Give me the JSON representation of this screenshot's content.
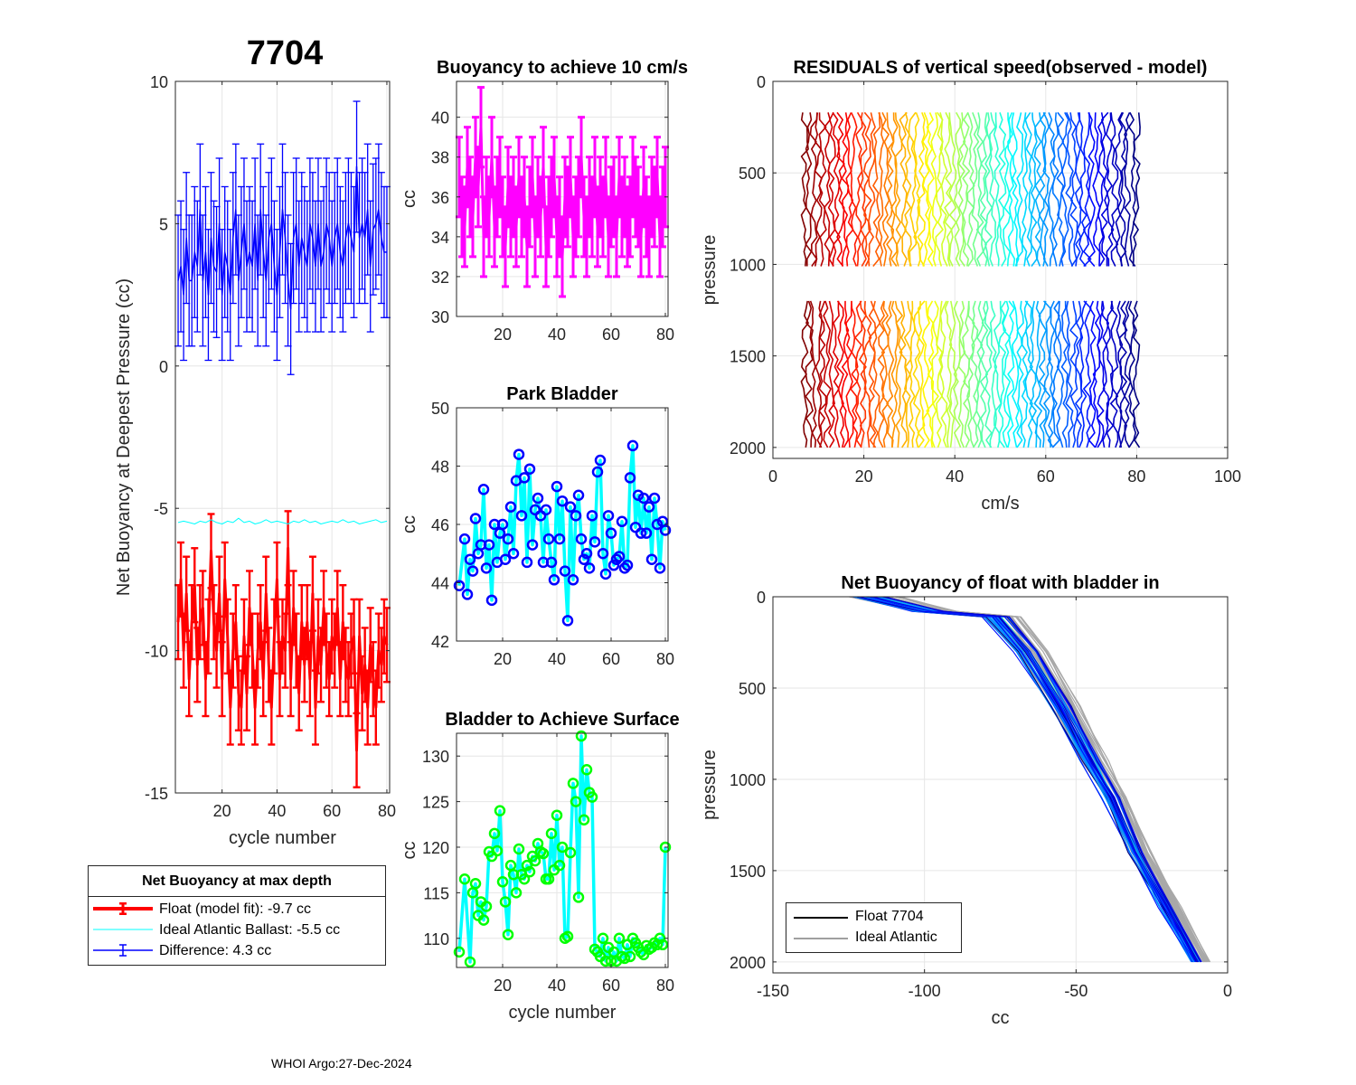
{
  "figure": {
    "main_title": "7704",
    "footer": "WHOI Argo:27-Dec-2024",
    "legend1": {
      "title": "Net Buoyancy at max depth",
      "entries": [
        {
          "label": "Float (model fit):  -9.7 cc",
          "color": "#ff0000"
        },
        {
          "label": "Ideal Atlantic Ballast:  -5.5 cc",
          "color": "#00ffff"
        },
        {
          "label": "Difference:   4.3 cc",
          "color": "#0000ff"
        }
      ]
    },
    "legend2": {
      "entries": [
        {
          "label": "Float 7704",
          "color": "#000000"
        },
        {
          "label": "Ideal Atlantic",
          "color": "#a0a0a0"
        }
      ]
    }
  },
  "chart_data": [
    {
      "id": "net_buoyancy",
      "type": "line",
      "title": "",
      "xlabel": "cycle number",
      "ylabel": "Net Buoyancy at Deepest Pressure (cc)",
      "xlim": [
        3,
        81
      ],
      "ylim": [
        -15,
        10
      ],
      "xticks": [
        20,
        40,
        60,
        80
      ],
      "yticks": [
        -15,
        -10,
        -5,
        0,
        5,
        10
      ],
      "grid": true,
      "series": [
        {
          "name": "Float (model fit)",
          "color": "#ff0000",
          "err": 1.3,
          "x": [
            4,
            5,
            6,
            7,
            8,
            9,
            10,
            11,
            12,
            13,
            14,
            15,
            16,
            17,
            18,
            19,
            20,
            21,
            22,
            23,
            24,
            25,
            26,
            27,
            28,
            29,
            30,
            31,
            32,
            33,
            34,
            35,
            36,
            37,
            38,
            39,
            40,
            41,
            42,
            43,
            44,
            45,
            46,
            47,
            48,
            49,
            50,
            51,
            52,
            53,
            54,
            55,
            56,
            57,
            58,
            59,
            60,
            61,
            62,
            63,
            64,
            65,
            66,
            67,
            68,
            69,
            70,
            71,
            72,
            73,
            74,
            75,
            76,
            77,
            78,
            79,
            80
          ],
          "y": [
            -9,
            -7.5,
            -10,
            -8,
            -11,
            -9,
            -7.7,
            -10.5,
            -9,
            -8.5,
            -11,
            -9.5,
            -6.5,
            -9,
            -10,
            -8,
            -11,
            -7.5,
            -9.5,
            -12,
            -10,
            -9,
            -11.5,
            -12,
            -9.5,
            -11.5,
            -8.5,
            -10,
            -12,
            -10,
            -9,
            -11,
            -8,
            -10.5,
            -12,
            -9.5,
            -7.5,
            -11,
            -9.5,
            -10,
            -6.4,
            -11,
            -8.5,
            -10,
            -11.5,
            -9,
            -10.5,
            -9,
            -11,
            -8,
            -12,
            -9.5,
            -10.5,
            -8.5,
            -10,
            -11,
            -9.5,
            -10,
            -8.5,
            -11,
            -9,
            -10.5,
            -11,
            -10,
            -9.5,
            -13.5,
            -9.5,
            -11.5,
            -10.5,
            -12,
            -9.8,
            -11,
            -12,
            -10,
            -10.5,
            -9.5,
            -9.8
          ]
        },
        {
          "name": "Ideal Atlantic Ballast",
          "color": "#00ffff",
          "x": [
            4,
            6,
            8,
            10,
            12,
            14,
            16,
            18,
            20,
            22,
            24,
            26,
            28,
            30,
            32,
            34,
            36,
            38,
            40,
            42,
            44,
            46,
            48,
            50,
            52,
            54,
            56,
            58,
            60,
            62,
            64,
            66,
            68,
            70,
            72,
            74,
            76,
            78,
            80
          ],
          "y": [
            -5.5,
            -5.45,
            -5.5,
            -5.55,
            -5.45,
            -5.5,
            -5.4,
            -5.5,
            -5.55,
            -5.45,
            -5.5,
            -5.35,
            -5.5,
            -5.45,
            -5.55,
            -5.5,
            -5.4,
            -5.5,
            -5.45,
            -5.5,
            -5.55,
            -5.45,
            -5.5,
            -5.4,
            -5.5,
            -5.45,
            -5.55,
            -5.5,
            -5.45,
            -5.5,
            -5.4,
            -5.5,
            -5.45,
            -5.55,
            -5.5,
            -5.45,
            -5.4,
            -5.5,
            -5.45
          ]
        },
        {
          "name": "Difference",
          "color": "#0000ff",
          "err": 2.3,
          "x": [
            4,
            5,
            6,
            7,
            8,
            9,
            10,
            11,
            12,
            13,
            14,
            15,
            16,
            17,
            18,
            19,
            20,
            21,
            22,
            23,
            24,
            25,
            26,
            27,
            28,
            29,
            30,
            31,
            32,
            33,
            34,
            35,
            36,
            37,
            38,
            39,
            40,
            41,
            42,
            43,
            44,
            45,
            46,
            47,
            48,
            49,
            50,
            51,
            52,
            53,
            54,
            55,
            56,
            57,
            58,
            59,
            60,
            61,
            62,
            63,
            64,
            65,
            66,
            67,
            68,
            69,
            70,
            71,
            72,
            73,
            74,
            75,
            76,
            77,
            78,
            79,
            80
          ],
          "y": [
            3,
            3.5,
            2.5,
            4.5,
            3,
            3,
            4,
            3.5,
            5.5,
            3,
            4,
            2.5,
            4.5,
            3.5,
            3.3,
            5,
            2.5,
            4,
            3.5,
            2.5,
            4.5,
            5.5,
            3,
            4,
            5,
            3.5,
            4,
            3.5,
            5,
            3,
            5.5,
            4,
            3,
            4.5,
            5,
            3.5,
            2.5,
            4,
            5.5,
            4.5,
            3,
            2,
            4.5,
            5,
            3.5,
            4.5,
            4,
            3.5,
            5,
            4.5,
            3.5,
            5,
            3.5,
            4,
            5,
            4.5,
            3.5,
            4.5,
            5,
            4,
            3.5,
            4.5,
            5,
            4.5,
            4,
            7,
            4.5,
            5,
            4.5,
            5.5,
            3.5,
            4.8,
            5,
            5.5,
            4.5,
            4,
            4
          ]
        }
      ]
    },
    {
      "id": "buoyancy_10cms",
      "type": "line",
      "title": "Buoyancy to achieve 10 cm/s",
      "xlabel": "",
      "ylabel": "cc",
      "xlim": [
        3,
        81
      ],
      "ylim": [
        30,
        41.8
      ],
      "xticks": [
        20,
        40,
        60,
        80
      ],
      "yticks": [
        30,
        32,
        34,
        36,
        38,
        40
      ],
      "grid": true,
      "series": [
        {
          "name": "buoyancy",
          "color": "#ff00ff",
          "err": 2.0,
          "x": [
            4,
            5,
            6,
            7,
            8,
            9,
            10,
            11,
            12,
            13,
            14,
            15,
            16,
            17,
            18,
            19,
            20,
            21,
            22,
            23,
            24,
            25,
            26,
            27,
            28,
            29,
            30,
            31,
            32,
            33,
            34,
            35,
            36,
            37,
            38,
            39,
            40,
            41,
            42,
            43,
            44,
            45,
            46,
            47,
            48,
            49,
            50,
            51,
            52,
            53,
            54,
            55,
            56,
            57,
            58,
            59,
            60,
            61,
            62,
            63,
            64,
            65,
            66,
            67,
            68,
            69,
            70,
            71,
            72,
            73,
            74,
            75,
            76,
            77,
            78,
            79,
            80
          ],
          "y": [
            37,
            35,
            34.5,
            37.5,
            36,
            35,
            38,
            36.5,
            39.5,
            34,
            36,
            35,
            38,
            34.5,
            36,
            37,
            35,
            33.5,
            36.5,
            35,
            36,
            34.5,
            37,
            35,
            36,
            33.5,
            35.5,
            37,
            34,
            36,
            35,
            37.5,
            33.5,
            35,
            36,
            37,
            34,
            35,
            33,
            36,
            35.5,
            37,
            34,
            35,
            36,
            38,
            35,
            34,
            36,
            35,
            37,
            34.5,
            36,
            35,
            37,
            34,
            35.5,
            36,
            34,
            37,
            35,
            36,
            34.5,
            35,
            37,
            36,
            35.5,
            34,
            36.5,
            35,
            34,
            36,
            35.5,
            37,
            34,
            35.5,
            36.5
          ]
        }
      ]
    },
    {
      "id": "park_bladder",
      "type": "line",
      "title": "Park Bladder",
      "xlabel": "",
      "ylabel": "cc",
      "xlim": [
        3,
        81
      ],
      "ylim": [
        42,
        50
      ],
      "xticks": [
        20,
        40,
        60,
        80
      ],
      "yticks": [
        42,
        44,
        46,
        48,
        50
      ],
      "grid": true,
      "series": [
        {
          "name": "park",
          "color": "#00ffff",
          "marker_color": "#0000ff",
          "x": [
            4,
            6,
            7,
            8,
            9,
            10,
            11,
            12,
            13,
            14,
            15,
            16,
            17,
            18,
            19,
            20,
            21,
            22,
            23,
            24,
            25,
            26,
            27,
            28,
            29,
            30,
            31,
            32,
            33,
            34,
            35,
            36,
            37,
            38,
            39,
            40,
            41,
            42,
            43,
            44,
            45,
            46,
            47,
            48,
            49,
            50,
            51,
            52,
            53,
            54,
            55,
            56,
            57,
            58,
            59,
            60,
            61,
            62,
            63,
            64,
            65,
            66,
            67,
            68,
            69,
            70,
            71,
            72,
            73,
            74,
            75,
            76,
            77,
            78,
            79,
            80
          ],
          "y": [
            43.9,
            45.5,
            43.6,
            44.8,
            44.4,
            46.2,
            45,
            45.3,
            47.2,
            44.5,
            45.3,
            43.4,
            46,
            44.7,
            45.7,
            46,
            44.8,
            45.5,
            46.6,
            45,
            47.5,
            48.4,
            46.3,
            47.6,
            44.7,
            47.9,
            45.3,
            46.5,
            46.9,
            46.3,
            44.7,
            46.5,
            45.5,
            44.7,
            44.1,
            47.3,
            45.5,
            46.8,
            44.4,
            42.7,
            46.6,
            44.1,
            46.3,
            47,
            45.5,
            44.8,
            45,
            44.5,
            46.3,
            45.4,
            47.8,
            48.2,
            45,
            44.3,
            46.3,
            45.7,
            44.6,
            44.8,
            44.9,
            46.1,
            44.5,
            44.6,
            47.6,
            48.7,
            45.9,
            47,
            45.7,
            46.9,
            45.7,
            46.6,
            44.8,
            46.9,
            46,
            44.5,
            46.1,
            45.8
          ]
        }
      ]
    },
    {
      "id": "bladder_surface",
      "type": "line",
      "title": "Bladder to Achieve Surface",
      "xlabel": "cycle number",
      "ylabel": "cc",
      "xlim": [
        3,
        81
      ],
      "ylim": [
        106.8,
        132.5
      ],
      "xticks": [
        20,
        40,
        60,
        80
      ],
      "yticks": [
        110,
        115,
        120,
        125,
        130
      ],
      "grid": true,
      "series": [
        {
          "name": "surface",
          "color": "#00ffff",
          "marker_color": "#00ff00",
          "x": [
            4,
            6,
            8,
            9,
            10,
            11,
            12,
            13,
            14,
            15,
            16,
            17,
            18,
            19,
            20,
            21,
            22,
            23,
            24,
            25,
            26,
            27,
            28,
            29,
            30,
            31,
            32,
            33,
            34,
            35,
            36,
            37,
            38,
            39,
            40,
            41,
            42,
            43,
            44,
            45,
            46,
            47,
            48,
            49,
            50,
            51,
            52,
            53,
            54,
            55,
            56,
            57,
            58,
            59,
            60,
            61,
            62,
            63,
            64,
            65,
            66,
            67,
            68,
            69,
            70,
            71,
            72,
            73,
            74,
            75,
            76,
            77,
            78,
            79,
            80
          ],
          "y": [
            108.5,
            116.5,
            107.4,
            115,
            116,
            112.5,
            114,
            112,
            113.5,
            119.5,
            119,
            121.5,
            119.6,
            124,
            116.2,
            114,
            110.4,
            118,
            117,
            115,
            119.8,
            117,
            116.5,
            118,
            117.3,
            119,
            118.5,
            120.4,
            119.5,
            119.3,
            116.5,
            116.5,
            121.5,
            117.5,
            123.5,
            118,
            120,
            110,
            110.2,
            119.4,
            127,
            125,
            114.5,
            132.2,
            123,
            128.5,
            126,
            125.5,
            108.8,
            108.5,
            108,
            110,
            107.5,
            109,
            107.5,
            108.5,
            107.5,
            110,
            108,
            107.8,
            109.3,
            108,
            110,
            109.5,
            109,
            108.5,
            108.2,
            109.2,
            108.8,
            109,
            109.5,
            109.3,
            110,
            109.3,
            120
          ]
        }
      ]
    },
    {
      "id": "residuals",
      "type": "line",
      "title": "RESIDUALS of vertical speed(observed - model)",
      "xlabel": "cm/s",
      "ylabel": "pressure",
      "xlim": [
        0,
        100
      ],
      "ylim": [
        0,
        2060
      ],
      "y_reversed": true,
      "xticks": [
        0,
        20,
        40,
        60,
        80,
        100
      ],
      "yticks": [
        0,
        500,
        1000,
        1500,
        2000
      ],
      "grid": true,
      "segments": [
        [
          170,
          1010
        ],
        [
          1200,
          2000
        ]
      ],
      "offsets_range": [
        7,
        80
      ],
      "n_profiles": 75,
      "colormap": "jet"
    },
    {
      "id": "net_buoyancy_profile",
      "type": "line",
      "title": "Net Buoyancy of float with bladder in",
      "xlabel": "cc",
      "ylabel": "pressure",
      "xlim": [
        -150,
        0
      ],
      "ylim": [
        0,
        2060
      ],
      "y_reversed": true,
      "xticks": [
        -150,
        -100,
        -50,
        0
      ],
      "yticks": [
        0,
        500,
        1000,
        1500,
        2000
      ],
      "grid": true,
      "profile_shape": {
        "pressure": [
          0,
          40,
          80,
          110,
          300,
          600,
          900,
          1100,
          1400,
          1700,
          2000
        ],
        "cc": [
          -120,
          -110,
          -100,
          -78,
          -68,
          -57,
          -47,
          -40,
          -32,
          -22,
          -12
        ]
      }
    }
  ]
}
